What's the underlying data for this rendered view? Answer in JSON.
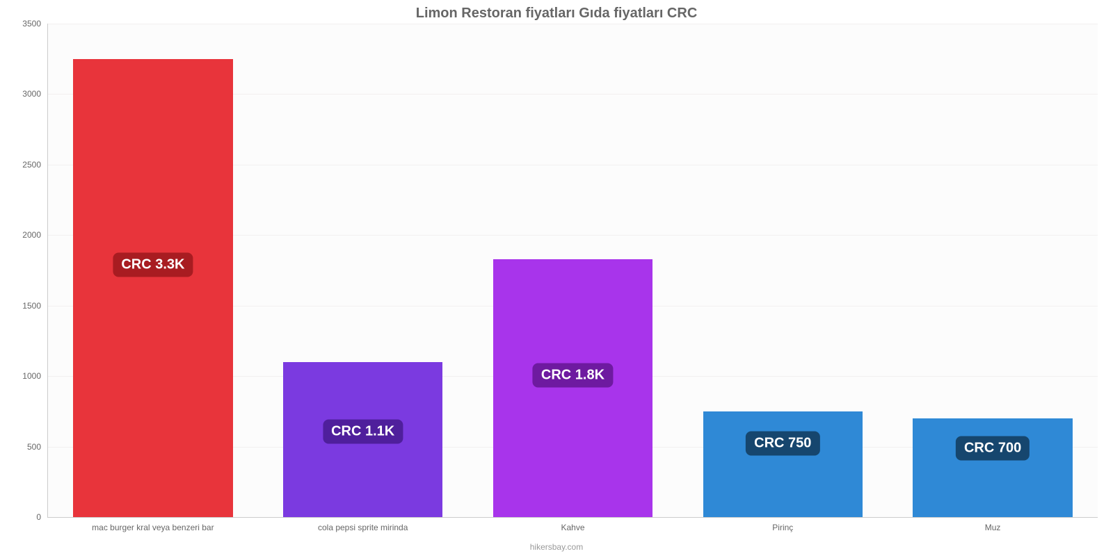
{
  "chart": {
    "type": "bar",
    "title": "Limon Restoran fiyatları Gıda fiyatları CRC",
    "title_fontsize": 20,
    "title_color": "#666666",
    "background_color": "#fcfcfc",
    "grid_color": "#f2f0f0",
    "axis_color": "#cccccc",
    "axis_label_color": "#666666",
    "axis_label_fontsize": 12,
    "ylim": [
      0,
      3500
    ],
    "ytick_step": 500,
    "yticks": [
      "0",
      "500",
      "1000",
      "1500",
      "2000",
      "2500",
      "3000",
      "3500"
    ],
    "bar_inner_width_pct": 76,
    "categories": [
      "mac burger kral veya benzeri bar",
      "cola pepsi sprite mirinda",
      "Kahve",
      "Pirinç",
      "Muz"
    ],
    "values": [
      3250,
      1100,
      1830,
      750,
      700
    ],
    "value_labels": [
      "CRC 3.3K",
      "CRC 1.1K",
      "CRC 1.8K",
      "CRC 750",
      "CRC 700"
    ],
    "bar_colors": [
      "#e8343b",
      "#7b3ae0",
      "#a834eb",
      "#2f89d6",
      "#2f89d6"
    ],
    "badge_colors": [
      "#a81c21",
      "#4f1f9c",
      "#6e1aa0",
      "#16466e",
      "#16466e"
    ],
    "badge_fontsize": 20
  },
  "footer": {
    "text": "hikersbay.com",
    "color": "#999999",
    "fontsize": 12
  }
}
